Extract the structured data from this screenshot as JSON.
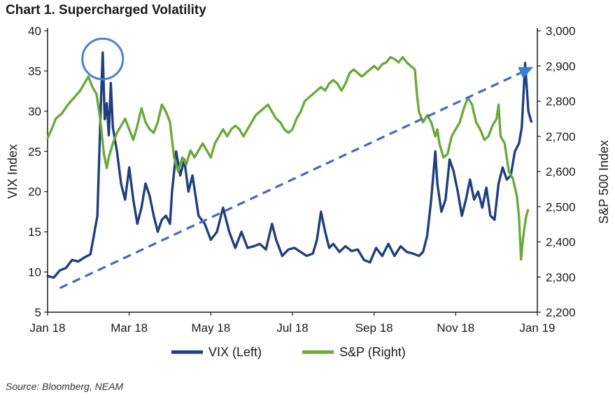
{
  "chart_data": {
    "type": "line",
    "title": "Chart 1. Supercharged Volatility",
    "source": "Source: Bloomberg, NEAM",
    "x_categories": [
      "Jan 18",
      "Mar 18",
      "May 18",
      "Jul 18",
      "Sep 18",
      "Nov 18",
      "Jan 19"
    ],
    "x_range_months": [
      0,
      12
    ],
    "y_left": {
      "label": "VIX Index",
      "range": [
        5,
        40
      ],
      "ticks": [
        "5",
        "10",
        "15",
        "20",
        "25",
        "30",
        "35",
        "40"
      ]
    },
    "y_right": {
      "label": "S&P 500 Index",
      "range": [
        2200,
        3000
      ],
      "ticks": [
        "2,200",
        "2,300",
        "2,400",
        "2,500",
        "2,600",
        "2,700",
        "2,800",
        "2,900",
        "3,000"
      ]
    },
    "legend": {
      "vix": "VIX (Left)",
      "sp": "S&P (Right)",
      "placement": "bottom"
    },
    "series": [
      {
        "name": "VIX (Left)",
        "axis": "left",
        "color": "#1f3f7f",
        "points": [
          [
            0,
            9.5
          ],
          [
            0.15,
            9.3
          ],
          [
            0.3,
            10.2
          ],
          [
            0.45,
            10.5
          ],
          [
            0.6,
            11.5
          ],
          [
            0.75,
            11.3
          ],
          [
            0.9,
            11.8
          ],
          [
            1.05,
            12.2
          ],
          [
            1.15,
            15
          ],
          [
            1.22,
            17
          ],
          [
            1.3,
            30
          ],
          [
            1.35,
            37.3
          ],
          [
            1.4,
            29
          ],
          [
            1.45,
            31
          ],
          [
            1.5,
            27
          ],
          [
            1.55,
            33.5
          ],
          [
            1.6,
            28
          ],
          [
            1.7,
            25
          ],
          [
            1.8,
            21
          ],
          [
            1.9,
            19
          ],
          [
            2.0,
            23
          ],
          [
            2.1,
            19
          ],
          [
            2.2,
            16
          ],
          [
            2.3,
            18
          ],
          [
            2.4,
            21
          ],
          [
            2.5,
            19.5
          ],
          [
            2.6,
            17
          ],
          [
            2.7,
            15
          ],
          [
            2.8,
            16.5
          ],
          [
            2.9,
            17
          ],
          [
            3.0,
            16
          ],
          [
            3.05,
            20
          ],
          [
            3.15,
            25
          ],
          [
            3.25,
            22
          ],
          [
            3.35,
            24
          ],
          [
            3.45,
            20
          ],
          [
            3.55,
            22
          ],
          [
            3.7,
            17
          ],
          [
            3.85,
            16
          ],
          [
            4.0,
            14
          ],
          [
            4.15,
            15
          ],
          [
            4.3,
            18
          ],
          [
            4.45,
            15
          ],
          [
            4.6,
            13
          ],
          [
            4.75,
            15
          ],
          [
            4.9,
            13
          ],
          [
            5.05,
            13.2
          ],
          [
            5.2,
            13.5
          ],
          [
            5.35,
            12.8
          ],
          [
            5.5,
            16
          ],
          [
            5.6,
            14
          ],
          [
            5.75,
            12
          ],
          [
            5.9,
            12.8
          ],
          [
            6.05,
            13
          ],
          [
            6.2,
            12.5
          ],
          [
            6.35,
            12
          ],
          [
            6.5,
            12.3
          ],
          [
            6.6,
            14
          ],
          [
            6.7,
            17.5
          ],
          [
            6.8,
            15
          ],
          [
            6.9,
            13
          ],
          [
            7.0,
            13.5
          ],
          [
            7.15,
            12.5
          ],
          [
            7.3,
            13.2
          ],
          [
            7.45,
            12.6
          ],
          [
            7.6,
            12.8
          ],
          [
            7.75,
            11.5
          ],
          [
            7.9,
            11.2
          ],
          [
            8.05,
            13
          ],
          [
            8.2,
            12
          ],
          [
            8.35,
            13.5
          ],
          [
            8.5,
            12
          ],
          [
            8.65,
            13.2
          ],
          [
            8.8,
            12.5
          ],
          [
            8.95,
            12.3
          ],
          [
            9.1,
            12.0
          ],
          [
            9.2,
            12.5
          ],
          [
            9.3,
            14.5
          ],
          [
            9.4,
            19
          ],
          [
            9.5,
            25
          ],
          [
            9.55,
            21
          ],
          [
            9.65,
            17.5
          ],
          [
            9.75,
            19
          ],
          [
            9.85,
            24
          ],
          [
            9.95,
            22.5
          ],
          [
            10.05,
            20
          ],
          [
            10.15,
            17
          ],
          [
            10.25,
            19
          ],
          [
            10.35,
            21.5
          ],
          [
            10.45,
            19
          ],
          [
            10.55,
            20
          ],
          [
            10.65,
            18
          ],
          [
            10.75,
            20.5
          ],
          [
            10.85,
            17
          ],
          [
            10.95,
            16.5
          ],
          [
            11.05,
            21
          ],
          [
            11.15,
            23
          ],
          [
            11.25,
            21.5
          ],
          [
            11.35,
            22
          ],
          [
            11.45,
            25
          ],
          [
            11.55,
            26
          ],
          [
            11.62,
            28
          ],
          [
            11.7,
            36
          ],
          [
            11.78,
            30
          ],
          [
            11.85,
            28.7
          ]
        ]
      },
      {
        "name": "S&P (Right)",
        "axis": "right",
        "color": "#6aaa3a",
        "points": [
          [
            0,
            2695
          ],
          [
            0.1,
            2720
          ],
          [
            0.2,
            2750
          ],
          [
            0.35,
            2765
          ],
          [
            0.5,
            2790
          ],
          [
            0.65,
            2810
          ],
          [
            0.8,
            2830
          ],
          [
            0.9,
            2850
          ],
          [
            1.0,
            2870
          ],
          [
            1.1,
            2840
          ],
          [
            1.2,
            2820
          ],
          [
            1.3,
            2740
          ],
          [
            1.38,
            2650
          ],
          [
            1.45,
            2610
          ],
          [
            1.5,
            2640
          ],
          [
            1.6,
            2680
          ],
          [
            1.7,
            2710
          ],
          [
            1.8,
            2730
          ],
          [
            1.9,
            2750
          ],
          [
            2.0,
            2720
          ],
          [
            2.1,
            2690
          ],
          [
            2.2,
            2730
          ],
          [
            2.3,
            2780
          ],
          [
            2.4,
            2740
          ],
          [
            2.5,
            2720
          ],
          [
            2.6,
            2710
          ],
          [
            2.7,
            2740
          ],
          [
            2.8,
            2790
          ],
          [
            2.9,
            2770
          ],
          [
            3.0,
            2740
          ],
          [
            3.1,
            2640
          ],
          [
            3.2,
            2600
          ],
          [
            3.3,
            2640
          ],
          [
            3.4,
            2620
          ],
          [
            3.5,
            2660
          ],
          [
            3.6,
            2640
          ],
          [
            3.7,
            2660
          ],
          [
            3.8,
            2680
          ],
          [
            3.9,
            2660
          ],
          [
            4.0,
            2640
          ],
          [
            4.1,
            2680
          ],
          [
            4.2,
            2700
          ],
          [
            4.3,
            2720
          ],
          [
            4.4,
            2700
          ],
          [
            4.5,
            2720
          ],
          [
            4.6,
            2730
          ],
          [
            4.7,
            2720
          ],
          [
            4.8,
            2700
          ],
          [
            4.9,
            2720
          ],
          [
            5.0,
            2740
          ],
          [
            5.1,
            2760
          ],
          [
            5.2,
            2770
          ],
          [
            5.3,
            2780
          ],
          [
            5.4,
            2790
          ],
          [
            5.5,
            2770
          ],
          [
            5.6,
            2750
          ],
          [
            5.7,
            2740
          ],
          [
            5.8,
            2720
          ],
          [
            5.9,
            2710
          ],
          [
            6.0,
            2720
          ],
          [
            6.1,
            2750
          ],
          [
            6.2,
            2770
          ],
          [
            6.3,
            2800
          ],
          [
            6.4,
            2810
          ],
          [
            6.5,
            2820
          ],
          [
            6.6,
            2830
          ],
          [
            6.7,
            2840
          ],
          [
            6.8,
            2830
          ],
          [
            6.9,
            2850
          ],
          [
            7.0,
            2860
          ],
          [
            7.1,
            2850
          ],
          [
            7.2,
            2830
          ],
          [
            7.3,
            2850
          ],
          [
            7.4,
            2880
          ],
          [
            7.5,
            2890
          ],
          [
            7.6,
            2880
          ],
          [
            7.7,
            2870
          ],
          [
            7.8,
            2880
          ],
          [
            7.9,
            2890
          ],
          [
            8.0,
            2900
          ],
          [
            8.1,
            2890
          ],
          [
            8.2,
            2905
          ],
          [
            8.3,
            2910
          ],
          [
            8.4,
            2925
          ],
          [
            8.5,
            2920
          ],
          [
            8.6,
            2910
          ],
          [
            8.7,
            2925
          ],
          [
            8.8,
            2910
          ],
          [
            8.9,
            2900
          ],
          [
            9.0,
            2890
          ],
          [
            9.05,
            2820
          ],
          [
            9.1,
            2770
          ],
          [
            9.2,
            2740
          ],
          [
            9.3,
            2760
          ],
          [
            9.4,
            2740
          ],
          [
            9.5,
            2700
          ],
          [
            9.55,
            2720
          ],
          [
            9.6,
            2680
          ],
          [
            9.65,
            2660
          ],
          [
            9.7,
            2640
          ],
          [
            9.8,
            2650
          ],
          [
            9.9,
            2700
          ],
          [
            10.0,
            2720
          ],
          [
            10.1,
            2740
          ],
          [
            10.2,
            2780
          ],
          [
            10.3,
            2810
          ],
          [
            10.4,
            2790
          ],
          [
            10.5,
            2740
          ],
          [
            10.6,
            2720
          ],
          [
            10.7,
            2690
          ],
          [
            10.8,
            2700
          ],
          [
            10.9,
            2730
          ],
          [
            11.0,
            2750
          ],
          [
            11.05,
            2790
          ],
          [
            11.1,
            2700
          ],
          [
            11.2,
            2680
          ],
          [
            11.3,
            2600
          ],
          [
            11.4,
            2580
          ],
          [
            11.5,
            2530
          ],
          [
            11.55,
            2470
          ],
          [
            11.6,
            2350
          ],
          [
            11.65,
            2410
          ],
          [
            11.72,
            2470
          ],
          [
            11.77,
            2490
          ]
        ]
      }
    ],
    "annotations": [
      {
        "type": "circle",
        "label": "VIX spike",
        "x_month": 1.35,
        "y_value": 36.5
      },
      {
        "type": "dashed-trend-arrow",
        "from": [
          0.3,
          8
        ],
        "to": [
          11.9,
          35.5
        ]
      }
    ]
  }
}
